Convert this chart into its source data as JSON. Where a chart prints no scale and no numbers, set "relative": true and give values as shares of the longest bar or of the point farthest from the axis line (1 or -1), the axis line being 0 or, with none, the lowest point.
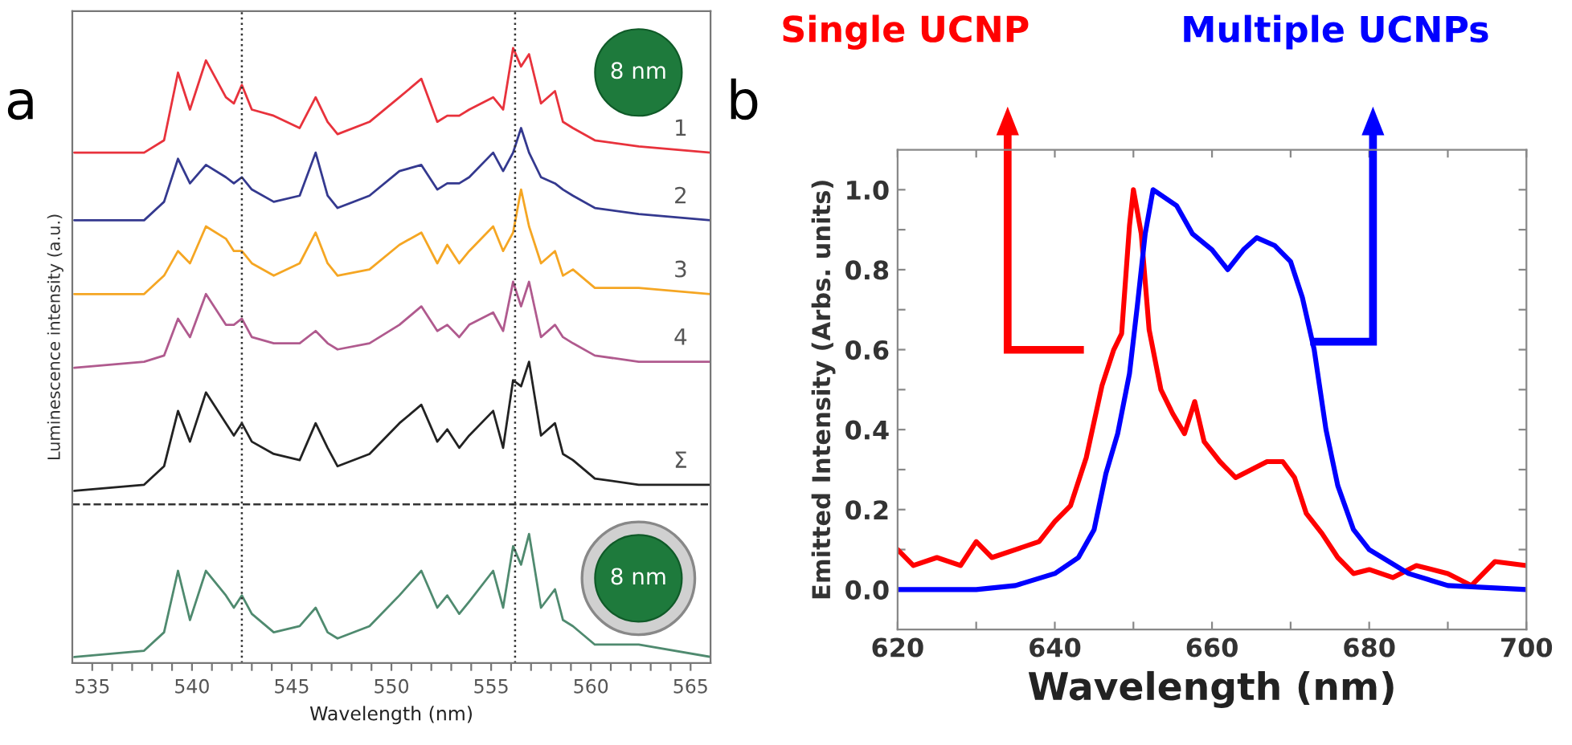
{
  "chart_data": [
    {
      "type": "line",
      "relative": true,
      "xlabel": "Wavelength (nm)",
      "ylabel": "Luminescence intensity (a.u.)",
      "tick_labels": "x",
      "legend": false,
      "grid": false,
      "marker": "none",
      "line_style": "solid",
      "xlim": [
        534,
        566
      ],
      "xticks": [
        535,
        {
          "value": 536,
          "label": null
        },
        {
          "value": 537,
          "label": null
        },
        {
          "value": 538,
          "label": null
        },
        {
          "value": 539,
          "label": null
        },
        540,
        {
          "value": 541,
          "label": null
        },
        {
          "value": 542,
          "label": null
        },
        {
          "value": 543,
          "label": null
        },
        {
          "value": 544,
          "label": null
        },
        545,
        {
          "value": 546,
          "label": null
        },
        {
          "value": 547,
          "label": null
        },
        {
          "value": 548,
          "label": null
        },
        {
          "value": 549,
          "label": null
        },
        550,
        {
          "value": 551,
          "label": null
        },
        {
          "value": 552,
          "label": null
        },
        {
          "value": 553,
          "label": null
        },
        {
          "value": 554,
          "label": null
        },
        555,
        {
          "value": 556,
          "label": null
        },
        {
          "value": 557,
          "label": null
        },
        {
          "value": 558,
          "label": null
        },
        {
          "value": 559,
          "label": null
        },
        560,
        {
          "value": 561,
          "label": null
        },
        {
          "value": 562,
          "label": null
        },
        {
          "value": 563,
          "label": null
        },
        {
          "value": 564,
          "label": null
        },
        565
      ],
      "x": [
        534.1,
        537.6,
        538.6,
        539.3,
        539.9,
        540.7,
        541.7,
        542.1,
        542.5,
        543.0,
        544.1,
        545.4,
        546.2,
        546.8,
        547.3,
        548.9,
        550.4,
        551.5,
        552.3,
        552.8,
        553.4,
        553.9,
        555.1,
        555.6,
        556.1,
        556.5,
        556.9,
        557.5,
        558.2,
        558.6,
        559.1,
        560.2,
        562.4,
        566.0
      ],
      "series": [
        {
          "name": "1",
          "color": "#e8323c",
          "values": [
            0.83,
            0.83,
            0.85,
            0.96,
            0.9,
            0.98,
            0.92,
            0.91,
            0.94,
            0.9,
            0.89,
            0.87,
            0.92,
            0.88,
            0.86,
            0.88,
            0.92,
            0.95,
            0.88,
            0.89,
            0.89,
            0.9,
            0.92,
            0.9,
            1.0,
            0.97,
            0.99,
            0.91,
            0.93,
            0.88,
            0.87,
            0.85,
            0.84,
            0.83
          ]
        },
        {
          "name": "2",
          "color": "#34398f",
          "values": [
            0.72,
            0.72,
            0.75,
            0.82,
            0.78,
            0.81,
            0.79,
            0.78,
            0.79,
            0.77,
            0.75,
            0.76,
            0.83,
            0.76,
            0.74,
            0.76,
            0.8,
            0.81,
            0.77,
            0.78,
            0.78,
            0.79,
            0.83,
            0.8,
            0.83,
            0.87,
            0.83,
            0.79,
            0.78,
            0.77,
            0.76,
            0.74,
            0.73,
            0.72
          ]
        },
        {
          "name": "3",
          "color": "#f5a623",
          "values": [
            0.6,
            0.6,
            0.63,
            0.67,
            0.65,
            0.71,
            0.69,
            0.67,
            0.67,
            0.65,
            0.63,
            0.65,
            0.7,
            0.65,
            0.63,
            0.64,
            0.68,
            0.7,
            0.65,
            0.68,
            0.65,
            0.67,
            0.71,
            0.67,
            0.7,
            0.77,
            0.71,
            0.65,
            0.67,
            0.63,
            0.64,
            0.61,
            0.61,
            0.6
          ]
        },
        {
          "name": "4",
          "color": "#b05a8e",
          "values": [
            0.48,
            0.49,
            0.5,
            0.56,
            0.53,
            0.6,
            0.55,
            0.55,
            0.56,
            0.53,
            0.52,
            0.52,
            0.54,
            0.52,
            0.51,
            0.52,
            0.55,
            0.58,
            0.54,
            0.55,
            0.53,
            0.55,
            0.57,
            0.54,
            0.62,
            0.58,
            0.62,
            0.53,
            0.55,
            0.53,
            0.52,
            0.5,
            0.49,
            0.49
          ]
        },
        {
          "name": "Σ",
          "color": "#222222",
          "values": [
            0.28,
            0.29,
            0.32,
            0.41,
            0.36,
            0.44,
            0.39,
            0.37,
            0.39,
            0.36,
            0.34,
            0.33,
            0.39,
            0.35,
            0.32,
            0.34,
            0.39,
            0.42,
            0.36,
            0.38,
            0.35,
            0.37,
            0.41,
            0.35,
            0.46,
            0.45,
            0.49,
            0.37,
            0.39,
            0.34,
            0.33,
            0.3,
            0.29,
            0.29
          ]
        },
        {
          "color": "#4f8a6f",
          "values": [
            0.01,
            0.02,
            0.05,
            0.15,
            0.07,
            0.15,
            0.11,
            0.09,
            0.11,
            0.08,
            0.05,
            0.06,
            0.09,
            0.05,
            0.04,
            0.06,
            0.11,
            0.15,
            0.09,
            0.11,
            0.08,
            0.1,
            0.15,
            0.09,
            0.19,
            0.16,
            0.21,
            0.09,
            0.12,
            0.07,
            0.06,
            0.03,
            0.03,
            0.01
          ]
        }
      ],
      "ref_lines": [
        {
          "axis": "x",
          "value": 542.5,
          "color": "#333333",
          "line_style": "dotted"
        },
        {
          "axis": "x",
          "value": 556.2,
          "color": "#333333",
          "line_style": "dotted"
        },
        {
          "axis": "y",
          "value": 0.258,
          "color": "#333333",
          "line_style": "dashed"
        }
      ],
      "annotations": [
        "a",
        "8 nm",
        "8 nm"
      ]
    },
    {
      "type": "line",
      "xlabel": "Wavelength (nm)",
      "ylabel": "Emitted Intensity (Arbs. units)",
      "legend": false,
      "grid": false,
      "marker": "none",
      "line_style": "solid",
      "xlim": [
        620,
        700
      ],
      "ylim": [
        -0.1,
        1.1
      ],
      "xticks": [
        620,
        {
          "value": 630,
          "label": null
        },
        640,
        {
          "value": 650,
          "label": null
        },
        660,
        {
          "value": 670,
          "label": null
        },
        680,
        {
          "value": 690,
          "label": null
        },
        700
      ],
      "yticks": [
        {
          "value": 0.0,
          "label": "0.0"
        },
        {
          "value": 0.1,
          "label": null
        },
        0.2,
        {
          "value": 0.3,
          "label": null
        },
        0.4,
        {
          "value": 0.5,
          "label": null
        },
        0.6,
        {
          "value": 0.7,
          "label": null
        },
        0.8,
        {
          "value": 0.9,
          "label": null
        },
        {
          "value": 1.0,
          "label": "1.0"
        }
      ],
      "series": [
        {
          "name": "Single UCNP",
          "color": "#ff0000",
          "x": [
            620,
            622,
            625,
            628,
            630,
            632,
            635,
            638,
            640,
            642,
            644,
            646,
            647.5,
            648.5,
            649.5,
            650,
            651,
            652,
            653.5,
            655,
            656.5,
            657.8,
            659,
            661,
            663,
            665,
            667,
            669,
            670.5,
            672,
            674,
            676,
            678,
            680,
            683,
            686,
            690,
            693,
            696,
            700
          ],
          "values": [
            0.1,
            0.06,
            0.08,
            0.06,
            0.12,
            0.08,
            0.1,
            0.12,
            0.17,
            0.21,
            0.33,
            0.51,
            0.6,
            0.64,
            0.91,
            1.0,
            0.89,
            0.65,
            0.5,
            0.44,
            0.39,
            0.47,
            0.37,
            0.32,
            0.28,
            0.3,
            0.32,
            0.32,
            0.28,
            0.19,
            0.14,
            0.08,
            0.04,
            0.05,
            0.03,
            0.06,
            0.04,
            0.01,
            0.07,
            0.06
          ]
        },
        {
          "name": "Multiple UCNPs",
          "color": "#0000ff",
          "x": [
            620,
            630,
            635,
            640,
            643,
            645,
            646.5,
            648,
            649.5,
            650.5,
            651.5,
            652.5,
            654,
            655.5,
            657.5,
            660,
            662,
            664,
            665.7,
            668,
            670,
            671.5,
            673,
            674.5,
            676,
            678,
            680,
            685,
            690,
            700
          ],
          "values": [
            0.0,
            0.0,
            0.01,
            0.04,
            0.08,
            0.15,
            0.29,
            0.39,
            0.54,
            0.71,
            0.89,
            1.0,
            0.98,
            0.96,
            0.89,
            0.85,
            0.8,
            0.85,
            0.88,
            0.86,
            0.82,
            0.73,
            0.6,
            0.4,
            0.26,
            0.15,
            0.1,
            0.04,
            0.01,
            0.0
          ]
        }
      ],
      "annotations": [
        "b"
      ]
    }
  ]
}
